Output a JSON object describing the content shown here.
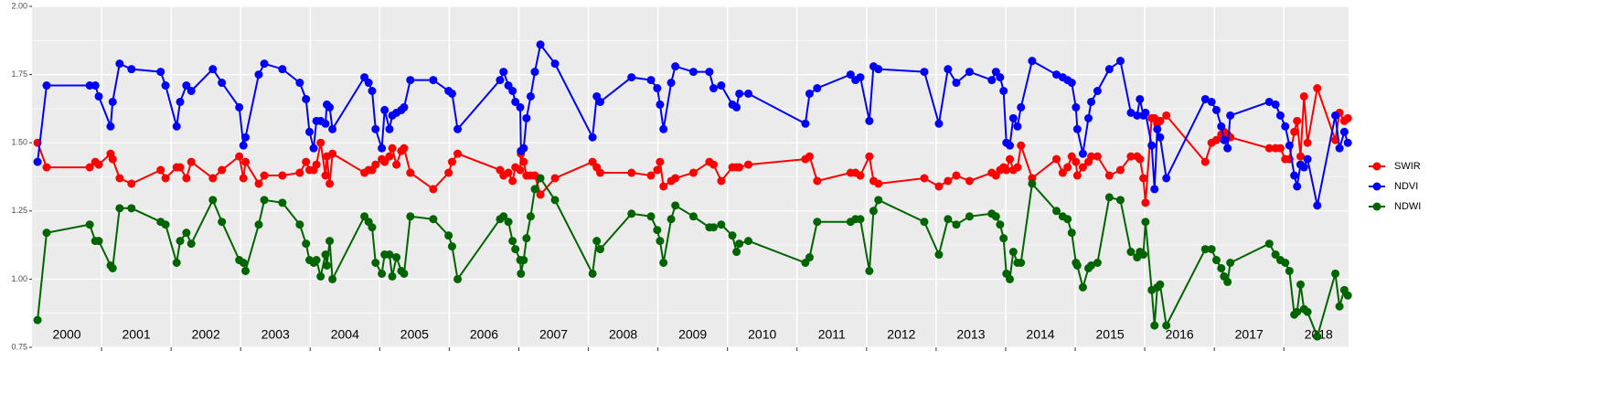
{
  "chart_data": {
    "type": "line",
    "x": [
      2000.08,
      2000.21,
      2000.83,
      2000.91,
      2000.96,
      2001.13,
      2001.16,
      2001.26,
      2001.43,
      2001.85,
      2001.92,
      2002.08,
      2002.13,
      2002.22,
      2002.29,
      2002.6,
      2002.73,
      2002.98,
      2003.04,
      2003.07,
      2003.26,
      2003.34,
      2003.6,
      2003.85,
      2003.94,
      2003.99,
      2004.05,
      2004.09,
      2004.15,
      2004.22,
      2004.24,
      2004.28,
      2004.32,
      2004.78,
      2004.84,
      2004.89,
      2004.94,
      2005.03,
      2005.07,
      2005.14,
      2005.18,
      2005.24,
      2005.31,
      2005.35,
      2005.44,
      2005.77,
      2005.99,
      2006.04,
      2006.12,
      2006.73,
      2006.78,
      2006.85,
      2006.91,
      2006.95,
      2007.02,
      2007.03,
      2007.07,
      2007.11,
      2007.17,
      2007.23,
      2007.31,
      2007.52,
      2008.06,
      2008.12,
      2008.17,
      2008.62,
      2008.9,
      2008.99,
      2009.03,
      2009.08,
      2009.19,
      2009.25,
      2009.51,
      2009.74,
      2009.8,
      2009.91,
      2010.07,
      2010.13,
      2010.17,
      2010.3,
      2011.12,
      2011.18,
      2011.29,
      2011.77,
      2011.84,
      2011.91,
      2012.04,
      2012.1,
      2012.17,
      2012.83,
      2013.04,
      2013.17,
      2013.29,
      2013.48,
      2013.8,
      2013.86,
      2013.92,
      2013.97,
      2014.01,
      2014.06,
      2014.11,
      2014.17,
      2014.22,
      2014.38,
      2014.73,
      2014.82,
      2014.89,
      2014.95,
      2015.01,
      2015.03,
      2015.11,
      2015.19,
      2015.23,
      2015.32,
      2015.49,
      2015.65,
      2015.8,
      2015.89,
      2015.93,
      2015.98,
      2016.01,
      2016.1,
      2016.14,
      2016.18,
      2016.22,
      2016.31,
      2016.87,
      2016.96,
      2017.03,
      2017.1,
      2017.14,
      2017.19,
      2017.23,
      2017.79,
      2017.88,
      2017.95,
      2018.02,
      2018.08,
      2018.15,
      2018.19,
      2018.24,
      2018.29,
      2018.34,
      2018.48,
      2018.74,
      2018.8,
      2018.87,
      2018.92
    ],
    "series": [
      {
        "name": "SWIR",
        "color": "#ff0000",
        "values": [
          1.5,
          1.41,
          1.41,
          1.43,
          1.42,
          1.46,
          1.44,
          1.37,
          1.35,
          1.4,
          1.37,
          1.41,
          1.41,
          1.37,
          1.43,
          1.37,
          1.4,
          1.45,
          1.37,
          1.43,
          1.35,
          1.38,
          1.38,
          1.39,
          1.43,
          1.4,
          1.4,
          1.42,
          1.5,
          1.38,
          1.45,
          1.35,
          1.46,
          1.39,
          1.4,
          1.4,
          1.42,
          1.44,
          1.43,
          1.45,
          1.48,
          1.42,
          1.47,
          1.48,
          1.39,
          1.33,
          1.39,
          1.43,
          1.46,
          1.4,
          1.38,
          1.39,
          1.36,
          1.41,
          1.4,
          1.46,
          1.43,
          1.38,
          1.38,
          1.38,
          1.31,
          1.37,
          1.43,
          1.41,
          1.39,
          1.39,
          1.38,
          1.4,
          1.43,
          1.34,
          1.36,
          1.37,
          1.39,
          1.43,
          1.42,
          1.36,
          1.41,
          1.41,
          1.41,
          1.42,
          1.44,
          1.45,
          1.36,
          1.39,
          1.39,
          1.38,
          1.45,
          1.36,
          1.35,
          1.37,
          1.34,
          1.36,
          1.38,
          1.36,
          1.39,
          1.38,
          1.4,
          1.41,
          1.4,
          1.44,
          1.4,
          1.41,
          1.49,
          1.37,
          1.44,
          1.39,
          1.41,
          1.45,
          1.43,
          1.38,
          1.41,
          1.43,
          1.45,
          1.45,
          1.38,
          1.4,
          1.45,
          1.45,
          1.44,
          1.37,
          1.28,
          1.59,
          1.59,
          1.57,
          1.58,
          1.6,
          1.43,
          1.5,
          1.51,
          1.53,
          1.54,
          1.53,
          1.52,
          1.48,
          1.48,
          1.48,
          1.44,
          1.44,
          1.54,
          1.58,
          1.45,
          1.67,
          1.5,
          1.7,
          1.51,
          1.61,
          1.58,
          1.59
        ]
      },
      {
        "name": "NDVI",
        "color": "#0000ff",
        "values": [
          1.43,
          1.71,
          1.71,
          1.71,
          1.67,
          1.56,
          1.65,
          1.79,
          1.77,
          1.76,
          1.71,
          1.56,
          1.65,
          1.71,
          1.69,
          1.77,
          1.72,
          1.63,
          1.49,
          1.52,
          1.75,
          1.79,
          1.77,
          1.72,
          1.66,
          1.54,
          1.48,
          1.58,
          1.58,
          1.57,
          1.64,
          1.63,
          1.55,
          1.74,
          1.72,
          1.69,
          1.55,
          1.48,
          1.62,
          1.55,
          1.6,
          1.61,
          1.62,
          1.63,
          1.73,
          1.73,
          1.69,
          1.68,
          1.55,
          1.73,
          1.76,
          1.71,
          1.69,
          1.65,
          1.63,
          1.47,
          1.48,
          1.59,
          1.67,
          1.76,
          1.86,
          1.79,
          1.52,
          1.67,
          1.65,
          1.74,
          1.73,
          1.7,
          1.64,
          1.55,
          1.72,
          1.78,
          1.76,
          1.76,
          1.7,
          1.71,
          1.64,
          1.63,
          1.68,
          1.68,
          1.57,
          1.68,
          1.7,
          1.75,
          1.73,
          1.74,
          1.58,
          1.78,
          1.77,
          1.76,
          1.57,
          1.77,
          1.72,
          1.76,
          1.73,
          1.76,
          1.74,
          1.69,
          1.5,
          1.49,
          1.59,
          1.56,
          1.63,
          1.8,
          1.75,
          1.74,
          1.73,
          1.72,
          1.63,
          1.55,
          1.46,
          1.59,
          1.65,
          1.69,
          1.77,
          1.8,
          1.61,
          1.6,
          1.66,
          1.6,
          1.61,
          1.49,
          1.33,
          1.55,
          1.52,
          1.37,
          1.66,
          1.65,
          1.62,
          1.56,
          1.51,
          1.48,
          1.6,
          1.65,
          1.64,
          1.6,
          1.56,
          1.49,
          1.38,
          1.34,
          1.42,
          1.41,
          1.44,
          1.27,
          1.6,
          1.48,
          1.54,
          1.5
        ]
      },
      {
        "name": "NDWI",
        "color": "#006400",
        "values": [
          0.85,
          1.17,
          1.2,
          1.14,
          1.14,
          1.05,
          1.04,
          1.26,
          1.26,
          1.21,
          1.2,
          1.06,
          1.14,
          1.17,
          1.13,
          1.29,
          1.21,
          1.07,
          1.06,
          1.03,
          1.2,
          1.29,
          1.28,
          1.2,
          1.13,
          1.07,
          1.06,
          1.07,
          1.01,
          1.09,
          1.05,
          1.14,
          1.0,
          1.23,
          1.21,
          1.19,
          1.06,
          1.02,
          1.09,
          1.09,
          1.01,
          1.08,
          1.03,
          1.02,
          1.23,
          1.22,
          1.16,
          1.12,
          1.0,
          1.22,
          1.23,
          1.21,
          1.14,
          1.11,
          1.07,
          1.02,
          1.07,
          1.15,
          1.23,
          1.33,
          1.37,
          1.29,
          1.02,
          1.14,
          1.11,
          1.24,
          1.23,
          1.18,
          1.14,
          1.06,
          1.22,
          1.27,
          1.23,
          1.19,
          1.19,
          1.2,
          1.16,
          1.1,
          1.13,
          1.14,
          1.06,
          1.08,
          1.21,
          1.21,
          1.22,
          1.22,
          1.03,
          1.25,
          1.29,
          1.21,
          1.09,
          1.22,
          1.2,
          1.23,
          1.24,
          1.23,
          1.2,
          1.15,
          1.02,
          1.0,
          1.1,
          1.06,
          1.06,
          1.35,
          1.25,
          1.23,
          1.22,
          1.17,
          1.06,
          1.05,
          0.97,
          1.04,
          1.05,
          1.06,
          1.3,
          1.29,
          1.1,
          1.08,
          1.1,
          1.09,
          1.21,
          0.96,
          0.83,
          0.97,
          0.98,
          0.83,
          1.11,
          1.11,
          1.07,
          1.04,
          1.01,
          0.99,
          1.06,
          1.13,
          1.09,
          1.07,
          1.06,
          1.03,
          0.87,
          0.88,
          0.98,
          0.89,
          0.88,
          0.79,
          1.02,
          0.9,
          0.96,
          0.94
        ]
      }
    ],
    "xlim": [
      2000,
      2018.93
    ],
    "xticks": [
      {
        "value": 2000.5,
        "label": "2000"
      },
      {
        "value": 2001.5,
        "label": "2001"
      },
      {
        "value": 2002.5,
        "label": "2002"
      },
      {
        "value": 2003.5,
        "label": "2003"
      },
      {
        "value": 2004.5,
        "label": "2004"
      },
      {
        "value": 2005.5,
        "label": "2005"
      },
      {
        "value": 2006.5,
        "label": "2006"
      },
      {
        "value": 2007.5,
        "label": "2007"
      },
      {
        "value": 2008.5,
        "label": "2008"
      },
      {
        "value": 2009.5,
        "label": "2009"
      },
      {
        "value": 2010.5,
        "label": "2010"
      },
      {
        "value": 2011.5,
        "label": "2011"
      },
      {
        "value": 2012.5,
        "label": "2012"
      },
      {
        "value": 2013.5,
        "label": "2013"
      },
      {
        "value": 2014.5,
        "label": "2014"
      },
      {
        "value": 2015.5,
        "label": "2015"
      },
      {
        "value": 2016.5,
        "label": "2016"
      },
      {
        "value": 2017.5,
        "label": "2017"
      },
      {
        "value": 2018.5,
        "label": "2018"
      }
    ],
    "xgrid": [
      2001,
      2002,
      2003,
      2004,
      2005,
      2006,
      2007,
      2008,
      2009,
      2010,
      2011,
      2012,
      2013,
      2014,
      2015,
      2016,
      2017,
      2018
    ],
    "ylim": [
      0.75,
      2.0
    ],
    "yticks": [
      {
        "value": 0.75,
        "label": "0.75"
      },
      {
        "value": 1.0,
        "label": "1.00"
      },
      {
        "value": 1.25,
        "label": "1.25"
      },
      {
        "value": 1.5,
        "label": "1.50"
      },
      {
        "value": 1.75,
        "label": "1.75"
      },
      {
        "value": 2.0,
        "label": "2.00"
      }
    ],
    "grid": true,
    "legend": "right"
  }
}
